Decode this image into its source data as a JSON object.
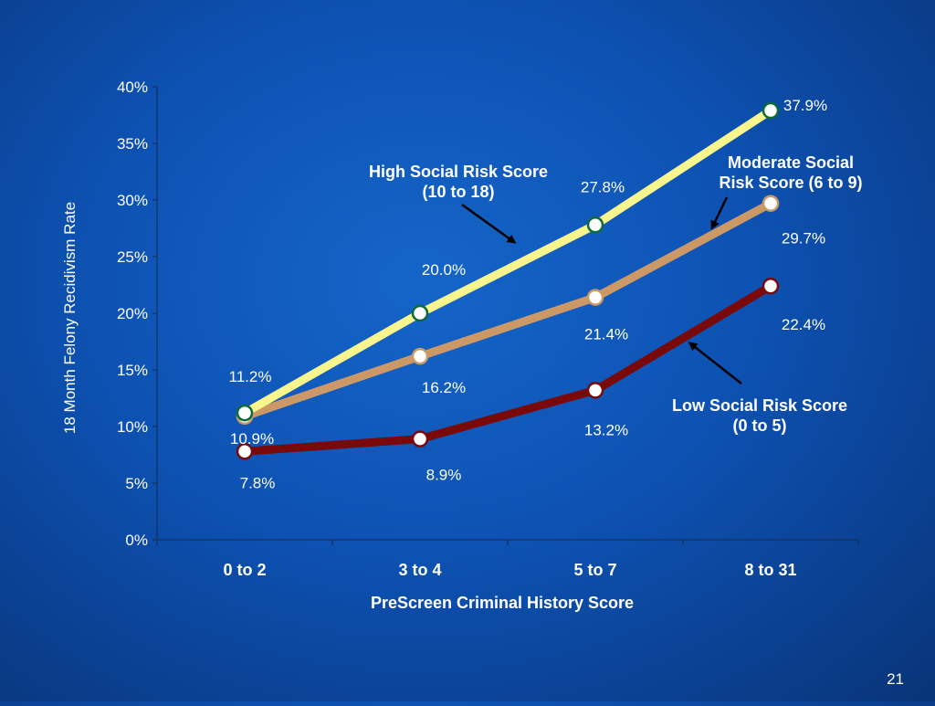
{
  "slide": {
    "page_number": "21"
  },
  "chart_data": {
    "type": "line",
    "categories": [
      "0 to 2",
      "3 to 4",
      "5 to 7",
      "8 to 31"
    ],
    "xlabel": "PreScreen Criminal History Score",
    "ylabel": "18 Month Felony Recidivism Rate",
    "ylim": [
      0,
      40
    ],
    "y_unit": "%",
    "y_ticks": [
      "0%",
      "5%",
      "10%",
      "15%",
      "20%",
      "25%",
      "30%",
      "35%",
      "40%"
    ],
    "grid": false,
    "series": [
      {
        "key": "high",
        "name_lines": [
          "High Social Risk Score",
          "(10 to 18)"
        ],
        "color": "#f7f58c",
        "marker_stroke": "#0b6b3a",
        "values": [
          11.2,
          20.0,
          27.8,
          37.9
        ],
        "labels": [
          "11.2%",
          "20.0%",
          "27.8%",
          "37.9%"
        ]
      },
      {
        "key": "moderate",
        "name_lines": [
          "Moderate Social",
          "Risk Score (6 to 9)"
        ],
        "color": "#cc9966",
        "marker_stroke": "#cc9966",
        "values": [
          10.9,
          16.2,
          21.4,
          29.7
        ],
        "labels": [
          "10.9%",
          "16.2%",
          "21.4%",
          "29.7%"
        ]
      },
      {
        "key": "low",
        "name_lines": [
          "Low Social Risk Score",
          "(0 to 5)"
        ],
        "color": "#7a0a0a",
        "marker_stroke": "#7a0a0a",
        "values": [
          7.8,
          8.9,
          13.2,
          22.4
        ],
        "labels": [
          "7.8%",
          "8.9%",
          "13.2%",
          "22.4%"
        ]
      }
    ]
  }
}
